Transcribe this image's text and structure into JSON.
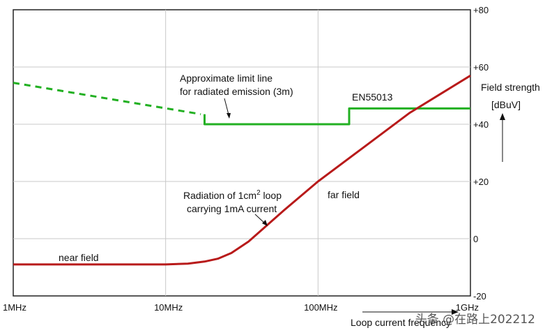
{
  "chart_data": {
    "type": "line",
    "x_scale": "log",
    "xlim": [
      "1MHz",
      "1GHz"
    ],
    "x_ticks": [
      "1MHz",
      "10MHz",
      "100MHz",
      "1GHz"
    ],
    "x_tick_values_mhz": [
      1,
      10,
      100,
      1000
    ],
    "ylim": [
      -20,
      80
    ],
    "y_ticks": [
      "+80",
      "+60",
      "+40",
      "+20",
      "0",
      "-20"
    ],
    "y_tick_values": [
      80,
      60,
      40,
      20,
      0,
      -20
    ],
    "ylabel": "Field strength",
    "yunit": "[dBuV]",
    "xlabel": "Loop current frequency",
    "grid": true,
    "series": [
      {
        "name": "Approximate limit line for radiated emission (3m)",
        "color": "#22b022",
        "dashed": true,
        "x_mhz": [
          1,
          17
        ],
        "y": [
          54.5,
          43.5
        ]
      },
      {
        "name": "EN55013",
        "color": "#22b022",
        "dashed": false,
        "x_mhz": [
          18,
          18,
          160,
          160,
          1000
        ],
        "y": [
          43.5,
          40,
          40,
          45.5,
          45.5
        ]
      },
      {
        "name": "Radiation of 1cm2 loop carrying 1mA current",
        "color": "#b81a1a",
        "dashed": false,
        "x_mhz": [
          1,
          5,
          10,
          14,
          18,
          22,
          27,
          35,
          60,
          100,
          200,
          400,
          1000
        ],
        "y": [
          -9,
          -9,
          -9,
          -8.7,
          -8,
          -7,
          -5,
          -1,
          10,
          20,
          32,
          44,
          57
        ]
      }
    ],
    "annotations": {
      "limit_line_1": "Approximate limit line",
      "limit_line_2": "for radiated emission (3m)",
      "en55013": "EN55013",
      "radiation_1": "Radiation of 1cm",
      "radiation_sup": "2",
      "radiation_1b": " loop",
      "radiation_2": "carrying 1mA current",
      "near_field": "near field",
      "far_field": "far field"
    }
  },
  "watermark": "头条 @在路上202212"
}
